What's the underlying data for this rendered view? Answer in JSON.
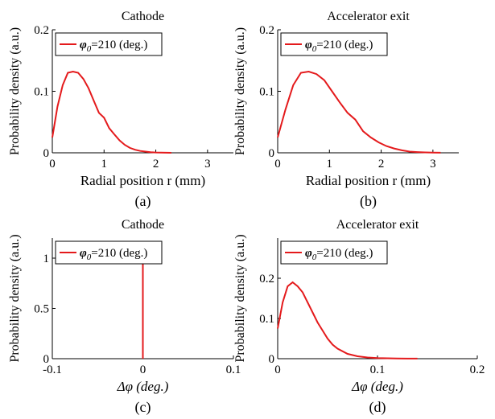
{
  "figure": {
    "legend_prefix": "φ",
    "legend_sub": "0",
    "legend_suffix": "=210 (deg.)",
    "ylabel": "Probability density (a.u.)"
  },
  "colors": {
    "series": "#e41a1c",
    "axis": "#000000"
  },
  "chart_data": [
    {
      "type": "line",
      "panel_label": "(a)",
      "title": "Cathode",
      "xlabel": "Radial position r (mm)",
      "ylabel": "Probability density (a.u.)",
      "xlim": [
        0,
        3.5
      ],
      "ylim": [
        0,
        0.2
      ],
      "x_ticks": [
        "0",
        "1",
        "2",
        "3"
      ],
      "y_ticks": [
        "0",
        "0.1",
        "0.2"
      ],
      "legend_position": "top-left",
      "series": [
        {
          "name": "φ0=210 (deg.)",
          "x": [
            0,
            0.1,
            0.2,
            0.3,
            0.4,
            0.5,
            0.6,
            0.7,
            0.8,
            0.9,
            1.0,
            1.1,
            1.2,
            1.3,
            1.4,
            1.5,
            1.6,
            1.7,
            1.8,
            1.9,
            2.0,
            2.1,
            2.2,
            2.3
          ],
          "y": [
            0.025,
            0.075,
            0.11,
            0.13,
            0.132,
            0.13,
            0.12,
            0.105,
            0.085,
            0.065,
            0.057,
            0.04,
            0.03,
            0.02,
            0.013,
            0.008,
            0.005,
            0.003,
            0.002,
            0.001,
            0.0005,
            0.0002,
            0.0001,
            0
          ]
        }
      ]
    },
    {
      "type": "line",
      "panel_label": "(b)",
      "title": "Accelerator exit",
      "xlabel": "Radial position r (mm)",
      "ylabel": "Probability density (a.u.)",
      "xlim": [
        0,
        3.5
      ],
      "ylim": [
        0,
        0.2
      ],
      "x_ticks": [
        "0",
        "1",
        "2",
        "3"
      ],
      "y_ticks": [
        "0",
        "0.1",
        "0.2"
      ],
      "legend_position": "top-left",
      "series": [
        {
          "name": "φ0=210 (deg.)",
          "x": [
            0,
            0.15,
            0.3,
            0.45,
            0.6,
            0.75,
            0.9,
            1.05,
            1.2,
            1.35,
            1.5,
            1.65,
            1.8,
            1.95,
            2.1,
            2.25,
            2.4,
            2.55,
            2.7,
            2.85,
            3.0,
            3.15
          ],
          "y": [
            0.025,
            0.07,
            0.11,
            0.13,
            0.132,
            0.128,
            0.118,
            0.1,
            0.082,
            0.065,
            0.054,
            0.035,
            0.025,
            0.017,
            0.011,
            0.007,
            0.004,
            0.002,
            0.0012,
            0.0006,
            0.0003,
            0.0001
          ]
        }
      ]
    },
    {
      "type": "line",
      "panel_label": "(c)",
      "title": "Cathode",
      "xlabel": "Δφ (deg.)",
      "ylabel": "Probability density (a.u.)",
      "xlim": [
        -0.1,
        0.1
      ],
      "ylim": [
        0,
        1.2
      ],
      "x_ticks": [
        "-0.1",
        "0",
        "0.1"
      ],
      "y_ticks": [
        "0",
        "0.5",
        "1"
      ],
      "legend_position": "top-left",
      "series": [
        {
          "name": "φ0=210 (deg.)",
          "x": [
            0,
            0
          ],
          "y": [
            0,
            1
          ]
        }
      ]
    },
    {
      "type": "line",
      "panel_label": "(d)",
      "title": "Accelerator exit",
      "xlabel": "Δφ (deg.)",
      "ylabel": "Probability density (a.u.)",
      "xlim": [
        0,
        0.2
      ],
      "ylim": [
        0,
        0.3
      ],
      "x_ticks": [
        "0",
        "0.1",
        "0.2"
      ],
      "y_ticks": [
        "0",
        "0.1",
        "0.2"
      ],
      "legend_position": "top-left",
      "series": [
        {
          "name": "φ0=210 (deg.)",
          "x": [
            0,
            0.005,
            0.01,
            0.015,
            0.02,
            0.025,
            0.03,
            0.035,
            0.04,
            0.045,
            0.05,
            0.055,
            0.06,
            0.07,
            0.08,
            0.09,
            0.1,
            0.11,
            0.12,
            0.13,
            0.14
          ],
          "y": [
            0.075,
            0.14,
            0.18,
            0.19,
            0.18,
            0.165,
            0.14,
            0.115,
            0.09,
            0.07,
            0.05,
            0.035,
            0.025,
            0.012,
            0.006,
            0.003,
            0.0015,
            0.001,
            0.0006,
            0.0003,
            0.0001
          ]
        }
      ]
    }
  ]
}
